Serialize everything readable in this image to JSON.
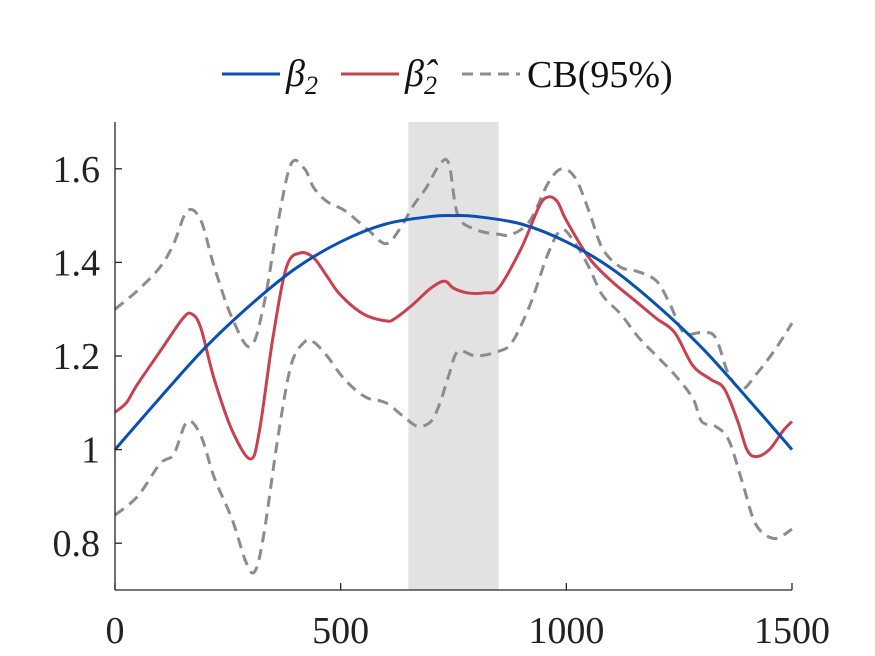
{
  "chart_data": {
    "type": "line",
    "xlim": [
      0,
      1500
    ],
    "ylim": [
      0.7,
      1.7
    ],
    "x_ticks": [
      "0",
      "500",
      "1000",
      "1500"
    ],
    "y_ticks": [
      "0.8",
      "1",
      "1.2",
      "1.4",
      "1.6"
    ],
    "grid": false,
    "legend_position": "top-center",
    "shaded_region": {
      "x": [
        650,
        850
      ],
      "color": "#e2e2e2"
    },
    "series": [
      {
        "name": "β2",
        "legend_symbol": "β",
        "legend_sub": "2",
        "color": "#0a50b4",
        "style": "solid",
        "x": [
          0,
          100,
          200,
          300,
          400,
          500,
          600,
          700,
          750,
          800,
          900,
          1000,
          1100,
          1200,
          1300,
          1400,
          1500
        ],
        "y": [
          1.0,
          1.111,
          1.218,
          1.309,
          1.387,
          1.444,
          1.482,
          1.498,
          1.5,
          1.498,
          1.482,
          1.444,
          1.387,
          1.309,
          1.218,
          1.111,
          1.0
        ]
      },
      {
        "name": "β̂2",
        "legend_symbol": "β̂",
        "legend_sub": "2",
        "color": "#c9414f",
        "style": "solid",
        "x": [
          0,
          25,
          50,
          100,
          150,
          170,
          190,
          220,
          260,
          300,
          320,
          350,
          380,
          410,
          440,
          470,
          500,
          550,
          600,
          620,
          660,
          700,
          730,
          750,
          780,
          820,
          850,
          900,
          940,
          960,
          980,
          1000,
          1050,
          1100,
          1150,
          1200,
          1240,
          1280,
          1320,
          1350,
          1380,
          1400,
          1420,
          1450,
          1480,
          1500
        ],
        "y": [
          1.08,
          1.1,
          1.14,
          1.21,
          1.28,
          1.29,
          1.26,
          1.15,
          1.04,
          0.98,
          1.04,
          1.24,
          1.39,
          1.42,
          1.41,
          1.37,
          1.33,
          1.29,
          1.275,
          1.28,
          1.31,
          1.345,
          1.36,
          1.345,
          1.335,
          1.335,
          1.345,
          1.43,
          1.52,
          1.54,
          1.53,
          1.49,
          1.41,
          1.36,
          1.32,
          1.28,
          1.25,
          1.18,
          1.15,
          1.13,
          1.06,
          1.0,
          0.985,
          1.0,
          1.04,
          1.06
        ]
      },
      {
        "name": "CB(95%)",
        "color": "#8c8c8c",
        "style": "dashed",
        "x": [
          0,
          50,
          100,
          130,
          160,
          190,
          220,
          260,
          300,
          330,
          360,
          390,
          420,
          440,
          470,
          510,
          560,
          600,
          630,
          660,
          690,
          720,
          740,
          760,
          800,
          850,
          880,
          920,
          960,
          990,
          1020,
          1050,
          1080,
          1120,
          1160,
          1200,
          1230,
          1260,
          1300,
          1330,
          1360,
          1390,
          1420,
          1460,
          1500
        ],
        "y": [
          1.3,
          1.34,
          1.39,
          1.44,
          1.51,
          1.49,
          1.39,
          1.28,
          1.22,
          1.31,
          1.48,
          1.61,
          1.6,
          1.56,
          1.53,
          1.51,
          1.47,
          1.44,
          1.47,
          1.52,
          1.56,
          1.61,
          1.61,
          1.5,
          1.47,
          1.46,
          1.46,
          1.49,
          1.57,
          1.6,
          1.58,
          1.51,
          1.43,
          1.39,
          1.38,
          1.36,
          1.31,
          1.25,
          1.25,
          1.24,
          1.16,
          1.13,
          1.16,
          1.21,
          1.27
        ],
        "lower": {
          "x": [
            0,
            50,
            100,
            130,
            160,
            190,
            220,
            260,
            290,
            310,
            330,
            360,
            390,
            420,
            440,
            470,
            500,
            530,
            560,
            600,
            640,
            670,
            700,
            720,
            740,
            760,
            800,
            850,
            880,
            920,
            960,
            990,
            1020,
            1050,
            1080,
            1120,
            1160,
            1200,
            1240,
            1280,
            1300,
            1330,
            1360,
            1390,
            1420,
            1460,
            1500
          ],
          "y": [
            0.86,
            0.9,
            0.97,
            0.99,
            1.06,
            1.03,
            0.94,
            0.85,
            0.76,
            0.74,
            0.82,
            1.02,
            1.18,
            1.23,
            1.23,
            1.2,
            1.16,
            1.13,
            1.11,
            1.1,
            1.07,
            1.05,
            1.06,
            1.1,
            1.16,
            1.21,
            1.2,
            1.21,
            1.23,
            1.31,
            1.42,
            1.47,
            1.44,
            1.39,
            1.33,
            1.29,
            1.24,
            1.2,
            1.16,
            1.11,
            1.06,
            1.05,
            1.02,
            0.93,
            0.84,
            0.81,
            0.83
          ]
        }
      }
    ]
  }
}
